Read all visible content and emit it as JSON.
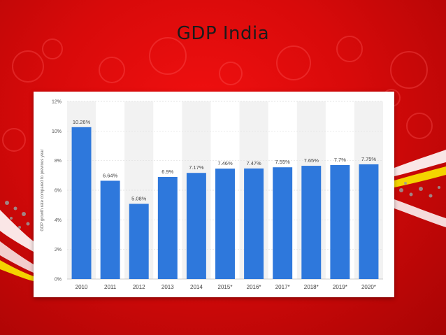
{
  "slide": {
    "title": "GDP India"
  },
  "colors": {
    "bar": "#2e78dc",
    "background": "#d80a0a",
    "card": "#ffffff",
    "band": "#f2f2f2"
  },
  "chart_data": {
    "type": "bar",
    "title": "",
    "xlabel": "",
    "ylabel": "GDP growth rate compared to previous year",
    "categories": [
      "2010",
      "2011",
      "2012",
      "2013",
      "2014",
      "2015*",
      "2016*",
      "2017*",
      "2018*",
      "2019*",
      "2020*"
    ],
    "values": [
      10.26,
      6.64,
      5.08,
      6.9,
      7.17,
      7.46,
      7.47,
      7.55,
      7.65,
      7.7,
      7.75
    ],
    "data_labels": [
      "10.26%",
      "6.64%",
      "5.08%",
      "6.9%",
      "7.17%",
      "7.46%",
      "7.47%",
      "7.55%",
      "7.65%",
      "7.7%",
      "7.75%"
    ],
    "ylim": [
      0,
      12
    ],
    "yticks": [
      0,
      2,
      4,
      6,
      8,
      10,
      12
    ],
    "ytick_labels": [
      "0%",
      "2%",
      "4%",
      "6%",
      "8%",
      "10%",
      "12%"
    ],
    "grid": true,
    "legend": "none"
  }
}
